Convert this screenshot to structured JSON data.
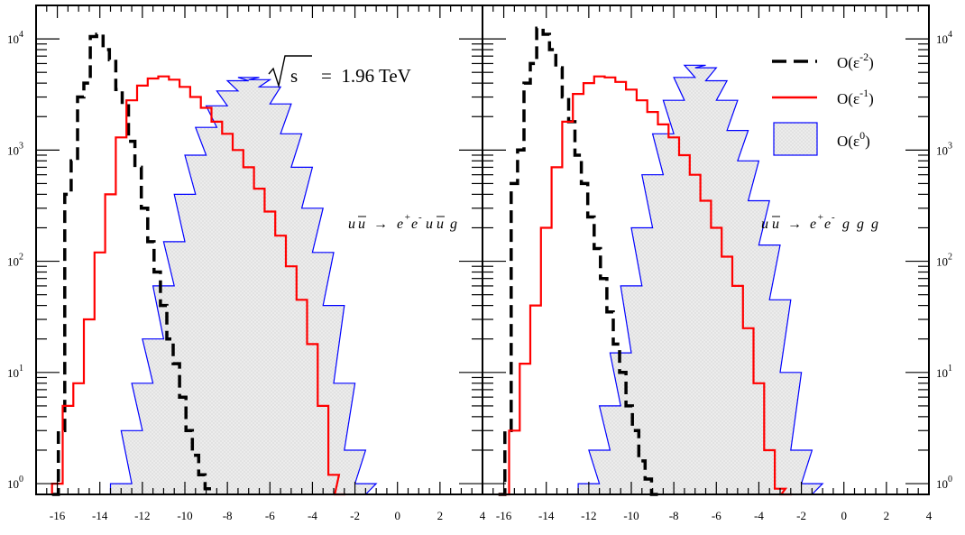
{
  "chart_data": [
    {
      "type": "histogram",
      "panel": "left",
      "xlim": [
        -17,
        4
      ],
      "ylog": true,
      "ylim": [
        0.8,
        20000
      ],
      "xticks": [
        "-16",
        "-14",
        "-12",
        "-10",
        "-8",
        "-6",
        "-4",
        "-2",
        "0",
        "2",
        "4"
      ],
      "yticks": [
        {
          "base": "10",
          "exp": "0",
          "value": 1
        },
        {
          "base": "10",
          "exp": "1",
          "value": 10
        },
        {
          "base": "10",
          "exp": "2",
          "value": 100
        },
        {
          "base": "10",
          "exp": "3",
          "value": 1000
        },
        {
          "base": "10",
          "exp": "4",
          "value": 10000
        }
      ],
      "energy_label": {
        "sqrt_symbol": "√",
        "under_root": "s",
        "value": "=  1.96 TeV"
      },
      "process": {
        "a": "u",
        "abar": "u",
        "arrow": "→",
        "ep": "e",
        "em": "e",
        "plus": "+",
        "minus": "-",
        "rest": "u",
        "restbar": "u",
        "last": "g"
      },
      "series": [
        {
          "key": "e2",
          "style": "dashed",
          "points": [
            [
              -16.1,
              0.8
            ],
            [
              -15.8,
              3
            ],
            [
              -15.5,
              400
            ],
            [
              -15.2,
              800
            ],
            [
              -14.9,
              3000
            ],
            [
              -14.6,
              4000
            ],
            [
              -14.3,
              10500
            ],
            [
              -14.0,
              11000
            ],
            [
              -13.7,
              8000
            ],
            [
              -13.4,
              6500
            ],
            [
              -13.1,
              3500
            ],
            [
              -12.8,
              2500
            ],
            [
              -12.5,
              1200
            ],
            [
              -12.2,
              700
            ],
            [
              -11.9,
              300
            ],
            [
              -11.6,
              150
            ],
            [
              -11.3,
              80
            ],
            [
              -11.0,
              40
            ],
            [
              -10.7,
              20
            ],
            [
              -10.4,
              12
            ],
            [
              -10.1,
              6
            ],
            [
              -9.8,
              3
            ],
            [
              -9.5,
              1.8
            ],
            [
              -9.2,
              1.2
            ],
            [
              -8.9,
              0.9
            ]
          ]
        },
        {
          "key": "e1",
          "style": "solid",
          "points": [
            [
              -16.0,
              1
            ],
            [
              -15.5,
              5
            ],
            [
              -15.0,
              8
            ],
            [
              -14.5,
              30
            ],
            [
              -14.0,
              120
            ],
            [
              -13.5,
              400
            ],
            [
              -13.0,
              1300
            ],
            [
              -12.5,
              2800
            ],
            [
              -12.0,
              3800
            ],
            [
              -11.5,
              4400
            ],
            [
              -11.0,
              4600
            ],
            [
              -10.5,
              4300
            ],
            [
              -10.0,
              3700
            ],
            [
              -9.5,
              3000
            ],
            [
              -9.0,
              2400
            ],
            [
              -8.5,
              1800
            ],
            [
              -8.0,
              1400
            ],
            [
              -7.5,
              1000
            ],
            [
              -7.0,
              700
            ],
            [
              -6.5,
              450
            ],
            [
              -6.0,
              280
            ],
            [
              -5.5,
              170
            ],
            [
              -5.0,
              90
            ],
            [
              -4.5,
              45
            ],
            [
              -4.0,
              18
            ],
            [
              -3.5,
              5
            ],
            [
              -3.0,
              1.2
            ],
            [
              -2.7,
              0.8
            ]
          ]
        },
        {
          "key": "e0",
          "style": "filled",
          "points": [
            [
              -14.0,
              0.8
            ],
            [
              -13.0,
              1
            ],
            [
              -12.5,
              3
            ],
            [
              -12.0,
              8
            ],
            [
              -11.5,
              20
            ],
            [
              -11.0,
              60
            ],
            [
              -10.5,
              150
            ],
            [
              -10.0,
              400
            ],
            [
              -9.5,
              900
            ],
            [
              -9.0,
              1600
            ],
            [
              -8.5,
              2500
            ],
            [
              -8.0,
              3400
            ],
            [
              -7.5,
              4200
            ],
            [
              -7.0,
              4500
            ],
            [
              -6.5,
              4300
            ],
            [
              -6.0,
              3700
            ],
            [
              -5.5,
              2600
            ],
            [
              -5.0,
              1400
            ],
            [
              -4.5,
              700
            ],
            [
              -4.0,
              300
            ],
            [
              -3.5,
              120
            ],
            [
              -3.0,
              40
            ],
            [
              -2.5,
              8
            ],
            [
              -2.0,
              2
            ],
            [
              -1.5,
              1
            ],
            [
              -1.0,
              0.8
            ]
          ]
        }
      ]
    },
    {
      "type": "histogram",
      "panel": "right",
      "xlim": [
        -17,
        4
      ],
      "ylog": true,
      "ylim": [
        0.8,
        20000
      ],
      "xticks": [
        "-16",
        "-14",
        "-12",
        "-10",
        "-8",
        "-6",
        "-4",
        "-2",
        "0",
        "2",
        "4"
      ],
      "yticks": [
        {
          "base": "10",
          "exp": "0",
          "value": 1
        },
        {
          "base": "10",
          "exp": "1",
          "value": 10
        },
        {
          "base": "10",
          "exp": "2",
          "value": 100
        },
        {
          "base": "10",
          "exp": "3",
          "value": 1000
        },
        {
          "base": "10",
          "exp": "4",
          "value": 10000
        }
      ],
      "legend": [
        {
          "key": "e2",
          "text": "O(ε",
          "sup": "-2",
          "close": ")"
        },
        {
          "key": "e1",
          "text": "O(ε",
          "sup": "-1",
          "close": ")"
        },
        {
          "key": "e0",
          "text": "O(ε",
          "sup": "0",
          "close": ")"
        }
      ],
      "process": {
        "a": "u",
        "abar": "u",
        "arrow": "→",
        "ep": "e",
        "em": "e",
        "plus": "+",
        "minus": "-",
        "g1": "g",
        "g2": "g",
        "g3": "g"
      },
      "series": [
        {
          "key": "e2",
          "style": "dashed",
          "points": [
            [
              -16.1,
              0.8
            ],
            [
              -15.8,
              3
            ],
            [
              -15.5,
              500
            ],
            [
              -15.2,
              1000
            ],
            [
              -14.9,
              4000
            ],
            [
              -14.6,
              6000
            ],
            [
              -14.3,
              12500
            ],
            [
              -14.0,
              11000
            ],
            [
              -13.7,
              8000
            ],
            [
              -13.4,
              5500
            ],
            [
              -13.1,
              3000
            ],
            [
              -12.8,
              1800
            ],
            [
              -12.5,
              900
            ],
            [
              -12.2,
              500
            ],
            [
              -11.9,
              250
            ],
            [
              -11.6,
              130
            ],
            [
              -11.3,
              70
            ],
            [
              -11.0,
              35
            ],
            [
              -10.7,
              18
            ],
            [
              -10.4,
              10
            ],
            [
              -10.1,
              5
            ],
            [
              -9.8,
              3
            ],
            [
              -9.5,
              1.6
            ],
            [
              -9.2,
              1.1
            ],
            [
              -8.9,
              0.8
            ]
          ]
        },
        {
          "key": "e1",
          "style": "solid",
          "points": [
            [
              -16.0,
              0.8
            ],
            [
              -15.5,
              3
            ],
            [
              -15.0,
              12
            ],
            [
              -14.5,
              40
            ],
            [
              -14.0,
              200
            ],
            [
              -13.5,
              700
            ],
            [
              -13.0,
              1800
            ],
            [
              -12.5,
              3200
            ],
            [
              -12.0,
              4000
            ],
            [
              -11.5,
              4600
            ],
            [
              -11.0,
              4500
            ],
            [
              -10.5,
              4100
            ],
            [
              -10.0,
              3500
            ],
            [
              -9.5,
              2800
            ],
            [
              -9.0,
              2200
            ],
            [
              -8.5,
              1700
            ],
            [
              -8.0,
              1300
            ],
            [
              -7.5,
              900
            ],
            [
              -7.0,
              600
            ],
            [
              -6.5,
              350
            ],
            [
              -6.0,
              200
            ],
            [
              -5.5,
              110
            ],
            [
              -5.0,
              60
            ],
            [
              -4.5,
              25
            ],
            [
              -4.0,
              8
            ],
            [
              -3.5,
              2
            ],
            [
              -3.0,
              0.9
            ],
            [
              -2.7,
              0.8
            ]
          ]
        },
        {
          "key": "e0",
          "style": "filled",
          "points": [
            [
              -13.0,
              0.8
            ],
            [
              -12.0,
              1
            ],
            [
              -11.5,
              2
            ],
            [
              -11.0,
              5
            ],
            [
              -10.5,
              15
            ],
            [
              -10.0,
              60
            ],
            [
              -9.5,
              200
            ],
            [
              -9.0,
              600
            ],
            [
              -8.5,
              1400
            ],
            [
              -8.0,
              2800
            ],
            [
              -7.5,
              4500
            ],
            [
              -7.0,
              5800
            ],
            [
              -6.5,
              5500
            ],
            [
              -6.0,
              4200
            ],
            [
              -5.5,
              2800
            ],
            [
              -5.0,
              1500
            ],
            [
              -4.5,
              800
            ],
            [
              -4.0,
              350
            ],
            [
              -3.5,
              140
            ],
            [
              -3.0,
              45
            ],
            [
              -2.5,
              10
            ],
            [
              -2.0,
              2
            ],
            [
              -1.5,
              1
            ],
            [
              -1.0,
              0.8
            ]
          ]
        }
      ]
    }
  ],
  "colors": {
    "e2": "#000000",
    "e1": "#ff0000",
    "e0": "#0000ff",
    "fill": "#e6e6e6"
  }
}
